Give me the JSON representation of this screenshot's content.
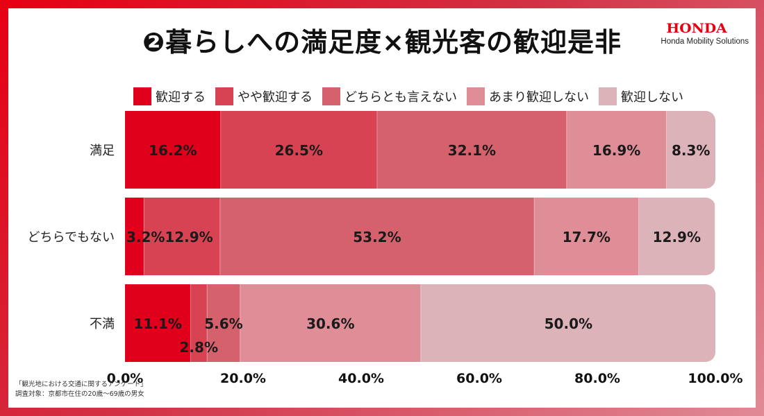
{
  "title": "❷暮らしへの満足度×観光客の歓迎是非",
  "logo": {
    "word": "HONDA",
    "subtitle": "Honda Mobility Solutions"
  },
  "colors": [
    "#e0001c",
    "#d84353",
    "#d4616c",
    "#df8d96",
    "#dcb3b8"
  ],
  "footnote": {
    "line1": "「観光地における交通に関するアンケート」",
    "line2": "調査対象：京都市在住の20歳〜69歳の男女"
  },
  "chart_data": {
    "type": "bar",
    "orientation": "horizontal",
    "stacked": true,
    "title": "❷暮らしへの満足度×観光客の歓迎是非",
    "categories": [
      "満足",
      "どちらでもない",
      "不満"
    ],
    "series": [
      {
        "name": "歓迎する",
        "values": [
          16.2,
          3.2,
          11.1
        ]
      },
      {
        "name": "やや歓迎する",
        "values": [
          26.5,
          12.9,
          2.8
        ]
      },
      {
        "name": "どちらとも言えない",
        "values": [
          32.1,
          53.2,
          5.6
        ]
      },
      {
        "name": "あまり歓迎しない",
        "values": [
          16.9,
          17.7,
          30.6
        ]
      },
      {
        "name": "歓迎しない",
        "values": [
          8.3,
          12.9,
          50.0
        ]
      }
    ],
    "xlim": [
      0,
      100
    ],
    "xticks": [
      "0.0%",
      "20.0%",
      "40.0%",
      "60.0%",
      "80.0%",
      "100.0%"
    ],
    "value_suffix": "%",
    "legend": "top",
    "grid": false
  }
}
